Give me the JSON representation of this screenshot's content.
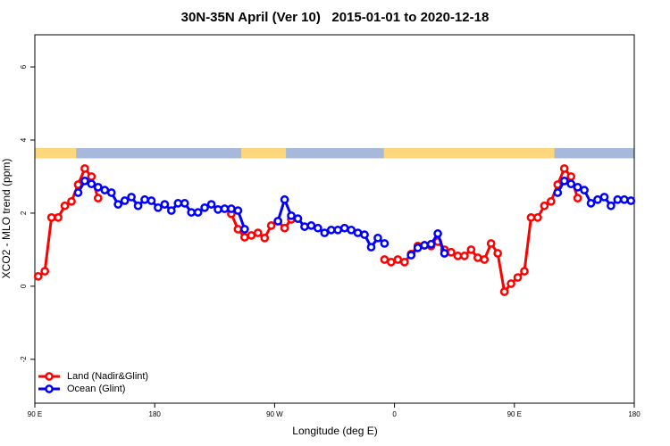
{
  "chart_data": {
    "type": "line",
    "title": "30N-35N April (Ver 10)   2015-01-01 to 2020-12-18",
    "xlabel": "Longitude (deg E)",
    "ylabel": "XCO2 - MLO trend (ppm)",
    "x": [
      92.5,
      97.5,
      102.5,
      107.5,
      112.5,
      117.5,
      122.5,
      127.5,
      132.5,
      137.5,
      142.5,
      147.5,
      152.5,
      157.5,
      162.5,
      167.5,
      172.5,
      177.5,
      182.5,
      187.5,
      192.5,
      197.5,
      202.5,
      207.5,
      212.5,
      217.5,
      222.5,
      227.5,
      232.5,
      237.5,
      242.5,
      247.5,
      252.5,
      257.5,
      262.5,
      267.5,
      272.5,
      277.5,
      282.5,
      287.5,
      292.5,
      297.5,
      302.5,
      307.5,
      312.5,
      317.5,
      322.5,
      327.5,
      332.5,
      337.5,
      342.5,
      347.5,
      352.5,
      357.5,
      362.5,
      367.5,
      372.5,
      377.5,
      382.5,
      387.5,
      392.5,
      397.5,
      402.5,
      407.5,
      412.5,
      417.5,
      422.5,
      427.5,
      432.5,
      437.5,
      442.5,
      447.5,
      452.5,
      457.5,
      462.5,
      467.5,
      472.5,
      477.5,
      482.5,
      487.5,
      492.5,
      497.5,
      502.5,
      507.5,
      512.5,
      517.5,
      522.5,
      527.5,
      532.5,
      537.5
    ],
    "series": [
      {
        "name": "Land (Nadir&Glint)",
        "color": "#ff0000",
        "values": [
          0.27,
          0.41,
          1.88,
          1.88,
          2.2,
          2.32,
          2.78,
          3.22,
          3.0,
          2.41,
          null,
          null,
          null,
          null,
          null,
          null,
          null,
          null,
          null,
          null,
          null,
          null,
          null,
          null,
          null,
          null,
          null,
          null,
          null,
          1.98,
          1.56,
          1.34,
          1.39,
          1.46,
          1.32,
          1.66,
          1.78,
          1.59,
          1.83,
          null,
          null,
          null,
          null,
          null,
          null,
          null,
          null,
          null,
          null,
          null,
          null,
          null,
          0.73,
          0.66,
          0.73,
          0.66,
          0.88,
          1.1,
          1.12,
          1.1,
          1.22,
          1.0,
          0.93,
          0.83,
          0.83,
          1.0,
          0.78,
          0.73,
          1.17,
          0.9,
          -0.15,
          0.07,
          0.24,
          0.41,
          1.88,
          1.88,
          2.2,
          2.32,
          2.78,
          3.22,
          3.0,
          2.41,
          null,
          null,
          null,
          null,
          null,
          null,
          null,
          null
        ]
      },
      {
        "name": "Ocean (Glint)",
        "color": "#0000ff",
        "values": [
          null,
          null,
          null,
          null,
          null,
          null,
          2.56,
          2.88,
          2.8,
          2.71,
          2.63,
          2.56,
          2.24,
          2.34,
          2.44,
          2.2,
          2.37,
          2.34,
          2.15,
          2.24,
          2.07,
          2.27,
          2.27,
          2.02,
          2.02,
          2.15,
          2.24,
          2.1,
          2.12,
          2.12,
          2.07,
          1.56,
          null,
          null,
          null,
          null,
          1.78,
          2.37,
          1.93,
          1.85,
          1.63,
          1.66,
          1.59,
          1.46,
          1.54,
          1.54,
          1.59,
          1.54,
          1.46,
          1.41,
          1.07,
          1.32,
          1.17,
          null,
          null,
          null,
          0.85,
          1.05,
          1.12,
          1.15,
          1.44,
          0.9,
          null,
          null,
          null,
          null,
          null,
          null,
          null,
          null,
          null,
          null,
          null,
          null,
          null,
          null,
          null,
          null,
          2.56,
          2.88,
          2.8,
          2.71,
          2.63,
          2.27,
          2.37,
          2.44,
          2.2,
          2.37,
          2.37,
          2.34
        ]
      }
    ],
    "xlim": [
      90,
      540
    ],
    "ylim": [
      -3.2,
      6.88
    ],
    "xticks": [
      {
        "value": 90,
        "label": "90 E"
      },
      180,
      {
        "value": 270,
        "label": "90 W"
      },
      {
        "value": 360,
        "label": "0"
      },
      {
        "value": 450,
        "label": "90 E"
      },
      {
        "value": 540,
        "label": "180"
      }
    ],
    "yticks": [
      -2,
      0,
      2,
      4,
      6
    ],
    "legend": "bottom-left",
    "surface_band": {
      "ylim": [
        3.5,
        3.78
      ],
      "ocean_color": "#a7b9da",
      "land_color": "#fcd77c",
      "land": [
        [
          90,
          121
        ],
        [
          245,
          278.5
        ],
        [
          352,
          480
        ]
      ]
    }
  }
}
